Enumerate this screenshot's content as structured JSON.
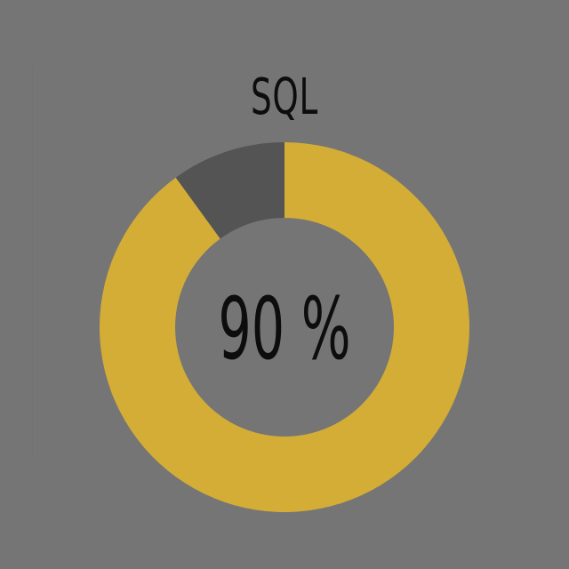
{
  "chart_data": {
    "type": "pie",
    "title": "SQL",
    "center_label": "90 %",
    "series": [
      {
        "values": [
          90,
          10
        ],
        "colors": [
          "#d4ad37",
          "#545454"
        ]
      }
    ],
    "background": "#757575"
  }
}
